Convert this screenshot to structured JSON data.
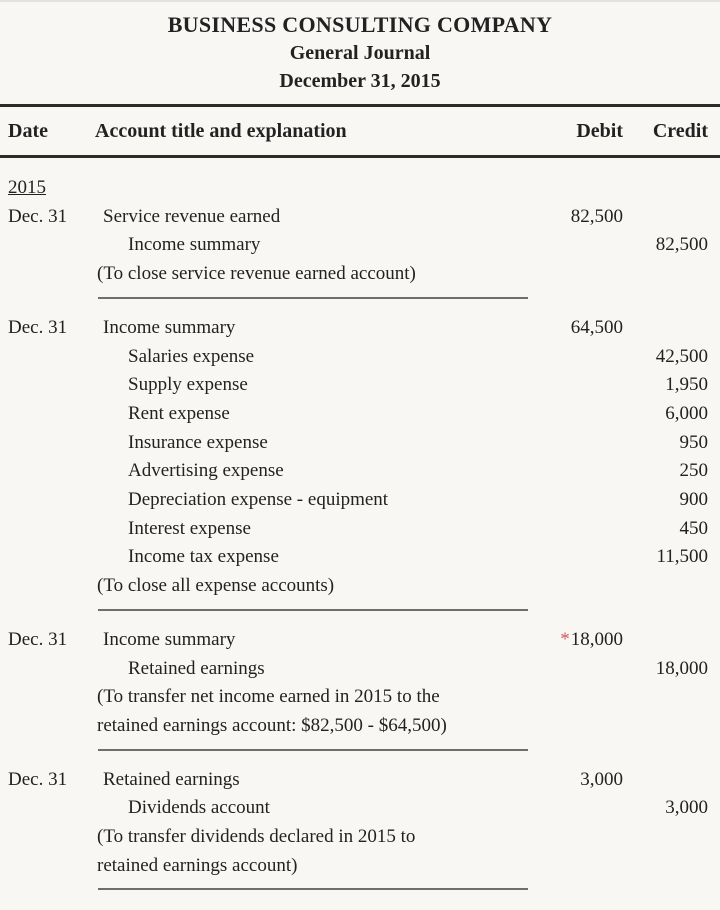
{
  "header": {
    "company": "BUSINESS CONSULTING COMPANY",
    "subtitle": "General Journal",
    "date": "December 31, 2015"
  },
  "columns": {
    "date": "Date",
    "account": "Account title and explanation",
    "debit": "Debit",
    "credit": "Credit"
  },
  "year_label": "2015",
  "entries": [
    {
      "date": "Dec. 31",
      "lines": [
        {
          "account": "Service revenue earned",
          "indent": 0,
          "debit": "82,500",
          "debit_marker": "",
          "credit": ""
        },
        {
          "account": "Income summary",
          "indent": 1,
          "debit": "",
          "debit_marker": "",
          "credit": "82,500"
        }
      ],
      "explanation": [
        "(To close service revenue earned account)"
      ]
    },
    {
      "date": "Dec. 31",
      "lines": [
        {
          "account": "Income summary",
          "indent": 0,
          "debit": "64,500",
          "debit_marker": "",
          "credit": ""
        },
        {
          "account": "Salaries expense",
          "indent": 1,
          "debit": "",
          "debit_marker": "",
          "credit": "42,500"
        },
        {
          "account": "Supply expense",
          "indent": 1,
          "debit": "",
          "debit_marker": "",
          "credit": "1,950"
        },
        {
          "account": "Rent expense",
          "indent": 1,
          "debit": "",
          "debit_marker": "",
          "credit": "6,000"
        },
        {
          "account": "Insurance expense",
          "indent": 1,
          "debit": "",
          "debit_marker": "",
          "credit": "950"
        },
        {
          "account": "Advertising expense",
          "indent": 1,
          "debit": "",
          "debit_marker": "",
          "credit": "250"
        },
        {
          "account": "Depreciation expense - equipment",
          "indent": 1,
          "debit": "",
          "debit_marker": "",
          "credit": "900"
        },
        {
          "account": "Interest expense",
          "indent": 1,
          "debit": "",
          "debit_marker": "",
          "credit": "450"
        },
        {
          "account": "Income tax expense",
          "indent": 1,
          "debit": "",
          "debit_marker": "",
          "credit": "11,500"
        }
      ],
      "explanation": [
        "(To close all expense accounts)"
      ]
    },
    {
      "date": "Dec. 31",
      "lines": [
        {
          "account": "Income summary",
          "indent": 0,
          "debit": "18,000",
          "debit_marker": "*",
          "credit": ""
        },
        {
          "account": "Retained earnings",
          "indent": 1,
          "debit": "",
          "debit_marker": "",
          "credit": "18,000"
        }
      ],
      "explanation": [
        "(To transfer net income earned in 2015 to the",
        "retained earnings account: $82,500 - $64,500)"
      ]
    },
    {
      "date": "Dec. 31",
      "lines": [
        {
          "account": "Retained earnings",
          "indent": 0,
          "debit": "3,000",
          "debit_marker": "",
          "credit": ""
        },
        {
          "account": "Dividends account",
          "indent": 1,
          "debit": "",
          "debit_marker": "",
          "credit": "3,000"
        }
      ],
      "explanation": [
        "(To transfer dividends declared in 2015 to",
        "retained earnings account)"
      ]
    }
  ],
  "colors": {
    "background": "#f8f7f4",
    "text": "#222222",
    "header_rule": "#2b2b2b",
    "entry_separator": "#6e6e6e",
    "asterisk_red": "#cf5b5b"
  }
}
